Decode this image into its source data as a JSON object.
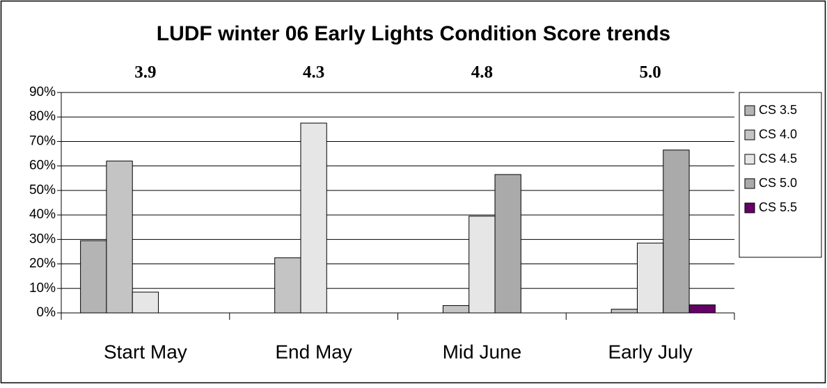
{
  "chart_data": {
    "type": "bar",
    "title": "LUDF winter 06 Early Lights Condition Score trends",
    "categories": [
      "Start May",
      "End May",
      "Mid June",
      "Early July"
    ],
    "annotations": [
      "3.9",
      "4.3",
      "4.8",
      "5.0"
    ],
    "series": [
      {
        "name": "CS 3.5",
        "color": "#b4b4b4",
        "values": [
          29.5,
          0,
          0,
          0
        ]
      },
      {
        "name": "CS 4.0",
        "color": "#c4c4c4",
        "values": [
          62,
          22.5,
          3,
          1.5
        ]
      },
      {
        "name": "CS 4.5",
        "color": "#e6e6e6",
        "values": [
          8.5,
          77.5,
          39.5,
          28.5
        ]
      },
      {
        "name": "CS 5.0",
        "color": "#aaaaaa",
        "values": [
          0,
          0,
          56.5,
          66.5
        ]
      },
      {
        "name": "CS 5.5",
        "color": "#660066",
        "values": [
          0,
          0,
          0,
          3.3
        ]
      }
    ],
    "ylim": [
      0,
      90
    ],
    "yticks": [
      {
        "value": 0,
        "label": "0%"
      },
      {
        "value": 10,
        "label": "10%"
      },
      {
        "value": 20,
        "label": "20%"
      },
      {
        "value": 30,
        "label": "30%"
      },
      {
        "value": 40,
        "label": "40%"
      },
      {
        "value": 50,
        "label": "50%"
      },
      {
        "value": 60,
        "label": "60%"
      },
      {
        "value": 70,
        "label": "70%"
      },
      {
        "value": 80,
        "label": "80%"
      },
      {
        "value": 90,
        "label": "90%"
      }
    ],
    "grid": true,
    "legend": "right"
  }
}
